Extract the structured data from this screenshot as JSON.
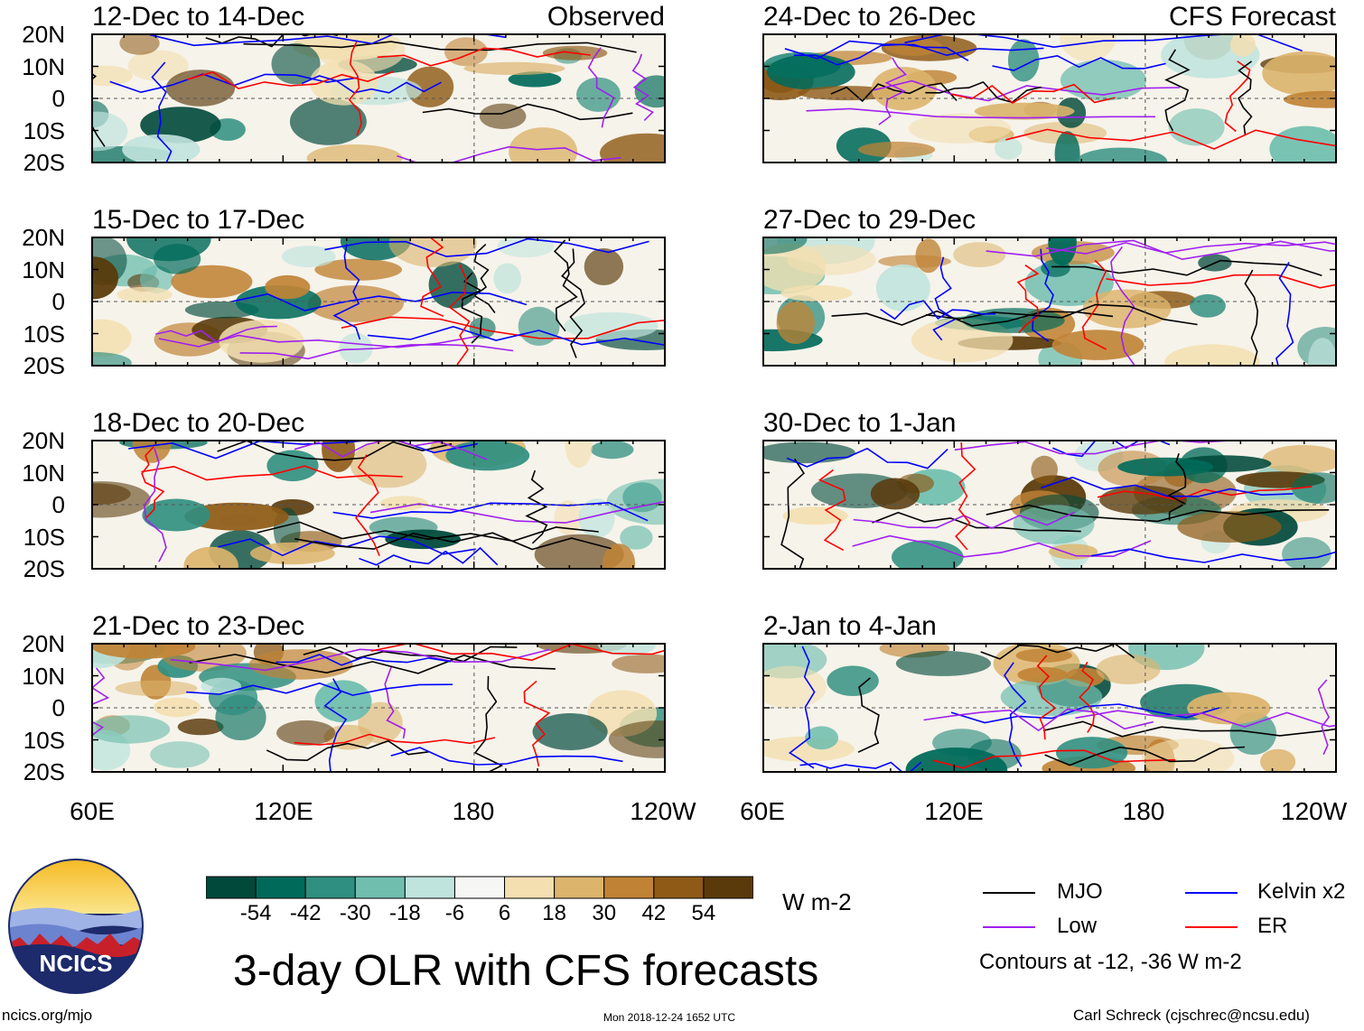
{
  "chart_data": {
    "type": "heatmap",
    "title": "3-day OLR with CFS forecasts",
    "variable": "OLR anomaly",
    "units": "W m-2",
    "latitude_ticks": [
      "20N",
      "10N",
      "0",
      "10S",
      "20S"
    ],
    "longitude_ticks": [
      "60E",
      "120E",
      "180",
      "120W"
    ],
    "latitude_range": [
      -20,
      20
    ],
    "longitude_range": [
      60,
      240
    ],
    "column_headers": [
      "Observed",
      "CFS Forecast"
    ],
    "panels": [
      {
        "label": "12-Dec to 14-Dec",
        "source": "Observed"
      },
      {
        "label": "15-Dec to 17-Dec",
        "source": "Observed"
      },
      {
        "label": "18-Dec to 20-Dec",
        "source": "Observed"
      },
      {
        "label": "21-Dec to 23-Dec",
        "source": "Observed"
      },
      {
        "label": "24-Dec to 26-Dec",
        "source": "CFS Forecast"
      },
      {
        "label": "27-Dec to 29-Dec",
        "source": "CFS Forecast"
      },
      {
        "label": "30-Dec to 1-Jan",
        "source": "CFS Forecast"
      },
      {
        "label": "2-Jan to 4-Jan",
        "source": "CFS Forecast"
      }
    ],
    "colorbar": {
      "labels": [
        "-54",
        "-42",
        "-30",
        "-18",
        "-6",
        "6",
        "18",
        "30",
        "42",
        "54"
      ],
      "colors": [
        "#00493b",
        "#006a5a",
        "#2f8f80",
        "#6fbeae",
        "#bfe4dd",
        "#f6f6f4",
        "#f3dfb0",
        "#dcb46c",
        "#c08335",
        "#8e5a16",
        "#5a3a0b"
      ],
      "units": "W m-2"
    },
    "contour_legend": [
      {
        "name": "MJO",
        "color": "#000000"
      },
      {
        "name": "Kelvin x2",
        "color": "#0000ff"
      },
      {
        "name": "Low",
        "color": "#a020f0"
      },
      {
        "name": "ER",
        "color": "#ff0000"
      }
    ],
    "contour_note": "Contours at -12, -36 W m-2"
  },
  "footer": {
    "logo_text": "NCICS",
    "left_url": "ncics.org/mjo",
    "timestamp": "Mon 2018-12-24 1652 UTC",
    "author": "Carl Schreck (cjschrec@ncsu.edu)"
  }
}
